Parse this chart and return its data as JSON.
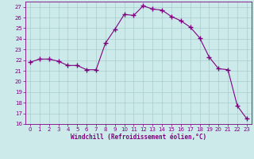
{
  "x": [
    0,
    1,
    2,
    3,
    4,
    5,
    6,
    7,
    8,
    9,
    10,
    11,
    12,
    13,
    14,
    15,
    16,
    17,
    18,
    19,
    20,
    21,
    22,
    23
  ],
  "y": [
    21.8,
    22.1,
    22.1,
    21.9,
    21.5,
    21.5,
    21.1,
    21.1,
    23.6,
    24.9,
    26.3,
    26.2,
    27.1,
    26.8,
    26.7,
    26.1,
    25.7,
    25.1,
    24.1,
    22.3,
    21.2,
    21.1,
    17.7,
    16.5
  ],
  "xlim": [
    -0.5,
    23.5
  ],
  "ylim": [
    16,
    27.5
  ],
  "yticks": [
    16,
    17,
    18,
    19,
    20,
    21,
    22,
    23,
    24,
    25,
    26,
    27
  ],
  "xticks": [
    0,
    1,
    2,
    3,
    4,
    5,
    6,
    7,
    8,
    9,
    10,
    11,
    12,
    13,
    14,
    15,
    16,
    17,
    18,
    19,
    20,
    21,
    22,
    23
  ],
  "xlabel": "Windchill (Refroidissement éolien,°C)",
  "line_color": "#800080",
  "marker": "+",
  "marker_size": 4,
  "bg_color": "#cceaea",
  "grid_color": "#aacccc",
  "spine_color": "#800080",
  "tick_color": "#800080",
  "label_color": "#800080",
  "figsize": [
    3.2,
    2.0
  ],
  "dpi": 100
}
